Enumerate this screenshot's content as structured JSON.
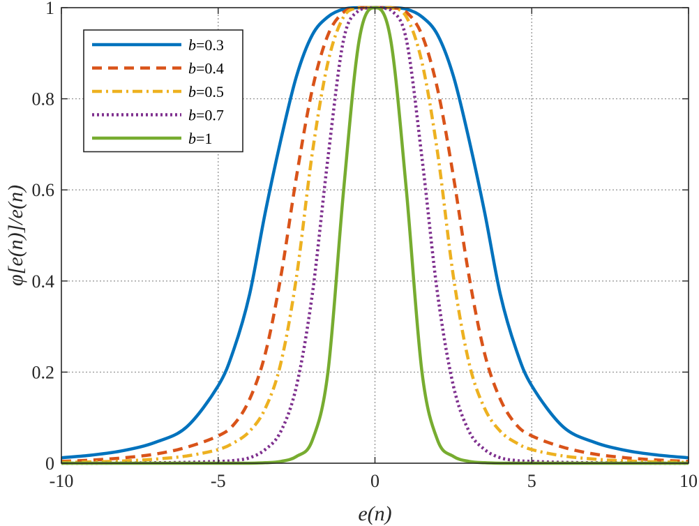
{
  "chart_data": {
    "type": "line",
    "xlabel": "e(n)",
    "ylabel": "φ[e(n)]/e(n)",
    "xlim": [
      -10,
      10
    ],
    "ylim": [
      0,
      1
    ],
    "x_ticks": [
      -10,
      -5,
      0,
      5,
      10
    ],
    "x_tick_labels": [
      "-10",
      "-5",
      "0",
      "5",
      "10"
    ],
    "y_ticks": [
      0,
      0.2,
      0.4,
      0.6,
      0.8,
      1
    ],
    "y_tick_labels": [
      "0",
      "0.2",
      "0.4",
      "0.6",
      "0.8",
      "1"
    ],
    "grid": true,
    "legend_position": "top-left",
    "x": [
      -10,
      -9,
      -8,
      -7,
      -6,
      -5,
      -4.5,
      -4,
      -3.5,
      -3,
      -2.5,
      -2,
      -1.5,
      -1,
      -0.5,
      0,
      0.5,
      1,
      1.5,
      2,
      2.5,
      3,
      3.5,
      4,
      4.5,
      5,
      6,
      7,
      8,
      9,
      10
    ],
    "series": [
      {
        "name": "b=0.3",
        "color": "#0072BD",
        "dash": "solid",
        "values": [
          0.012,
          0.018,
          0.028,
          0.046,
          0.08,
          0.17,
          0.25,
          0.37,
          0.55,
          0.71,
          0.85,
          0.94,
          0.98,
          0.997,
          1.0,
          1.0,
          1.0,
          0.997,
          0.98,
          0.94,
          0.85,
          0.71,
          0.55,
          0.37,
          0.25,
          0.17,
          0.08,
          0.046,
          0.028,
          0.018,
          0.012
        ]
      },
      {
        "name": "b=0.4",
        "color": "#D95319",
        "dash": "dashed",
        "values": [
          0.004,
          0.007,
          0.012,
          0.02,
          0.035,
          0.06,
          0.085,
          0.14,
          0.24,
          0.41,
          0.63,
          0.82,
          0.94,
          0.99,
          1.0,
          1.0,
          1.0,
          0.99,
          0.94,
          0.82,
          0.63,
          0.41,
          0.24,
          0.14,
          0.085,
          0.06,
          0.035,
          0.02,
          0.012,
          0.007,
          0.004
        ]
      },
      {
        "name": "b=0.5",
        "color": "#EDB120",
        "dash": "dashdot",
        "values": [
          0.002,
          0.003,
          0.005,
          0.009,
          0.016,
          0.03,
          0.045,
          0.07,
          0.12,
          0.22,
          0.41,
          0.68,
          0.88,
          0.98,
          1.0,
          1.0,
          1.0,
          0.98,
          0.88,
          0.68,
          0.41,
          0.22,
          0.12,
          0.07,
          0.045,
          0.03,
          0.016,
          0.009,
          0.005,
          0.003,
          0.002
        ]
      },
      {
        "name": "b=0.7",
        "color": "#7E2F8E",
        "dash": "dotted",
        "values": [
          0.0,
          0.0,
          0.0005,
          0.001,
          0.002,
          0.004,
          0.006,
          0.012,
          0.03,
          0.07,
          0.17,
          0.37,
          0.67,
          0.93,
          0.995,
          1.0,
          0.995,
          0.93,
          0.67,
          0.37,
          0.17,
          0.07,
          0.03,
          0.012,
          0.006,
          0.004,
          0.002,
          0.001,
          0.0005,
          0.0,
          0.0
        ]
      },
      {
        "name": "b=1",
        "color": "#77AC30",
        "dash": "solid",
        "values": [
          0.0,
          0.0,
          0.0,
          0.0,
          0.0,
          0.0,
          0.0,
          0.0,
          0.001,
          0.004,
          0.015,
          0.05,
          0.2,
          0.6,
          0.93,
          1.0,
          0.93,
          0.6,
          0.2,
          0.05,
          0.015,
          0.004,
          0.001,
          0.0,
          0.0,
          0.0,
          0.0,
          0.0,
          0.0,
          0.0,
          0.0
        ]
      }
    ],
    "legend": [
      {
        "prefix": "b",
        "suffix": "=0.3"
      },
      {
        "prefix": "b",
        "suffix": "=0.4"
      },
      {
        "prefix": "b",
        "suffix": "=0.5"
      },
      {
        "prefix": "b",
        "suffix": "=0.7"
      },
      {
        "prefix": "b",
        "suffix": "=1"
      }
    ]
  }
}
